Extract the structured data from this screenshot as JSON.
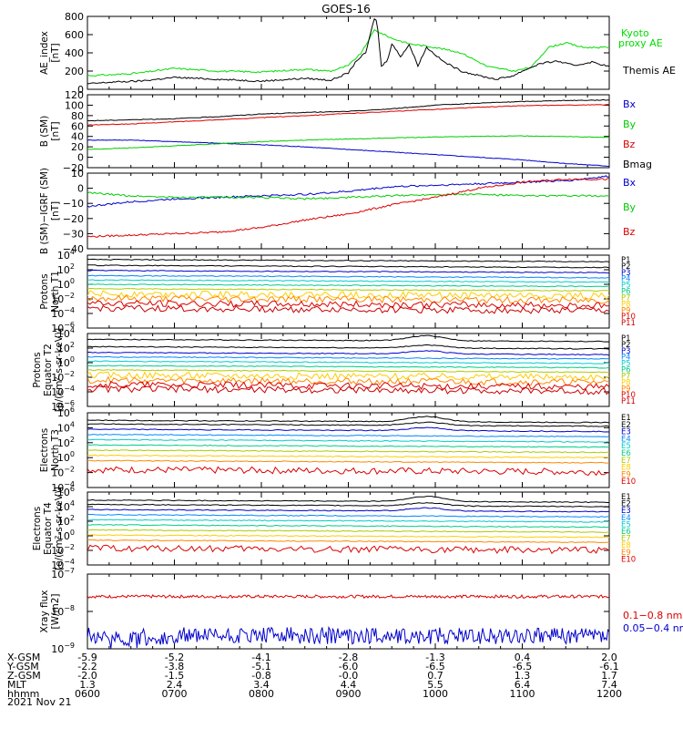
{
  "title": "GOES-16",
  "date_label": "2021 Nov 21",
  "footer": {
    "row_labels": [
      "X-GSM",
      "Y-GSM",
      "Z-GSM",
      "MLT",
      "hhmm"
    ],
    "columns": [
      {
        "x": "-5.9",
        "y": "-2.2",
        "z": "-2.0",
        "mlt": "1.3",
        "hhmm": "0600"
      },
      {
        "x": "-5.2",
        "y": "-3.8",
        "z": "-1.5",
        "mlt": "2.4",
        "hhmm": "0700"
      },
      {
        "x": "-4.1",
        "y": "-5.1",
        "z": "-0.8",
        "mlt": "3.4",
        "hhmm": "0800"
      },
      {
        "x": "-2.8",
        "y": "-6.0",
        "z": "-0.0",
        "mlt": "4.4",
        "hhmm": "0900"
      },
      {
        "x": "-1.3",
        "y": "-6.5",
        "z": "0.7",
        "mlt": "5.5",
        "hhmm": "1000"
      },
      {
        "x": "0.4",
        "y": "-6.5",
        "z": "1.3",
        "mlt": "6.4",
        "hhmm": "1100"
      },
      {
        "x": "2.0",
        "y": "-6.1",
        "z": "1.7",
        "mlt": "7.4",
        "hhmm": "1200"
      }
    ]
  },
  "chart_data": [
    {
      "type": "line",
      "ylabel": [
        "AE_index",
        "[nT]"
      ],
      "x_range_hours": [
        6,
        12
      ],
      "ylim": [
        0,
        800
      ],
      "yticks": [
        0,
        200,
        400,
        600,
        800
      ],
      "ytick_labels": [
        "0",
        "200",
        "400",
        "600",
        "800"
      ],
      "series": [
        {
          "name": "Kyoto proxy AE",
          "color": "#00dd00",
          "x": [
            6.0,
            6.3,
            6.6,
            7.0,
            7.5,
            8.0,
            8.5,
            8.8,
            9.0,
            9.15,
            9.3,
            9.5,
            9.7,
            10.0,
            10.3,
            10.6,
            10.9,
            11.1,
            11.3,
            11.5,
            11.7,
            12.0
          ],
          "values": [
            150,
            160,
            180,
            230,
            200,
            190,
            220,
            200,
            260,
            400,
            650,
            560,
            500,
            460,
            400,
            250,
            200,
            240,
            460,
            510,
            460,
            460
          ]
        },
        {
          "name": "Themis AE",
          "color": "#000000",
          "x": [
            6.0,
            6.3,
            6.6,
            7.0,
            7.5,
            8.0,
            8.5,
            8.8,
            9.0,
            9.1,
            9.2,
            9.3,
            9.33,
            9.38,
            9.45,
            9.5,
            9.6,
            9.7,
            9.8,
            9.9,
            10.0,
            10.1,
            10.3,
            10.5,
            10.7,
            10.9,
            11.0,
            11.2,
            11.4,
            11.6,
            11.8,
            12.0
          ],
          "values": [
            60,
            80,
            90,
            130,
            110,
            90,
            120,
            100,
            180,
            320,
            400,
            780,
            740,
            250,
            320,
            500,
            360,
            490,
            260,
            460,
            380,
            300,
            200,
            150,
            110,
            150,
            200,
            280,
            310,
            260,
            300,
            250
          ]
        }
      ]
    },
    {
      "type": "line",
      "ylabel": [
        "B (SM)",
        "[nT]"
      ],
      "x_range_hours": [
        6,
        12
      ],
      "ylim": [
        -20,
        120
      ],
      "yticks": [
        -20,
        0,
        20,
        40,
        60,
        80,
        100,
        120
      ],
      "ytick_labels": [
        "−20",
        "0",
        "20",
        "40",
        "60",
        "80",
        "100",
        "120"
      ],
      "series": [
        {
          "name": "Bx",
          "color": "#0000cc",
          "x": [
            6,
            6.5,
            7,
            7.5,
            8,
            8.5,
            9,
            9.5,
            10,
            10.5,
            11,
            11.5,
            12
          ],
          "values": [
            33,
            33,
            30,
            27,
            24,
            20,
            15,
            10,
            5,
            0,
            -5,
            -12,
            -17
          ]
        },
        {
          "name": "By",
          "color": "#00cc00",
          "x": [
            6,
            6.5,
            7,
            7.5,
            8,
            8.5,
            9,
            9.5,
            10,
            10.5,
            11,
            11.5,
            12
          ],
          "values": [
            15,
            18,
            22,
            26,
            30,
            33,
            35,
            37,
            39,
            40,
            41,
            40,
            38
          ]
        },
        {
          "name": "Bz",
          "color": "#dd0000",
          "x": [
            6,
            6.5,
            7,
            7.5,
            8,
            8.5,
            9,
            9.5,
            10,
            10.5,
            11,
            11.5,
            12
          ],
          "values": [
            62,
            64,
            68,
            72,
            76,
            80,
            84,
            88,
            92,
            96,
            99,
            100,
            101
          ]
        },
        {
          "name": "Bmag",
          "color": "#000000",
          "x": [
            6,
            6.5,
            7,
            7.5,
            8,
            8.5,
            9,
            9.5,
            10,
            10.5,
            11,
            11.5,
            12
          ],
          "values": [
            70,
            72,
            74,
            78,
            83,
            86,
            88,
            93,
            100,
            104,
            107,
            109,
            110
          ]
        }
      ]
    },
    {
      "type": "line",
      "ylabel": [
        "B (SM)−IGRF (SM)",
        "[nT]"
      ],
      "x_range_hours": [
        6,
        12
      ],
      "ylim": [
        -40,
        10
      ],
      "yticks": [
        -40,
        -30,
        -20,
        -10,
        0,
        10
      ],
      "ytick_labels": [
        "−40",
        "−30",
        "−20",
        "−10",
        "0",
        "10"
      ],
      "series": [
        {
          "name": "Bx",
          "color": "#0000cc",
          "x": [
            6,
            6.5,
            7,
            7.5,
            8,
            8.5,
            9,
            9.5,
            10,
            10.5,
            11,
            11.5,
            12
          ],
          "values": [
            -12,
            -9,
            -7,
            -6,
            -5,
            -4,
            -2,
            1,
            2,
            3,
            4,
            5,
            8
          ]
        },
        {
          "name": "By",
          "color": "#00cc00",
          "x": [
            6,
            6.5,
            7,
            7.5,
            8,
            8.5,
            9,
            9.5,
            10,
            10.5,
            11,
            11.5,
            12
          ],
          "values": [
            -3,
            -5,
            -6,
            -6,
            -6,
            -7,
            -6,
            -5,
            -4,
            -4,
            -5,
            -5,
            -5
          ]
        },
        {
          "name": "Bz",
          "color": "#dd0000",
          "x": [
            6,
            6.5,
            7,
            7.5,
            8,
            8.5,
            9,
            9.5,
            10,
            10.5,
            11,
            11.5,
            12
          ],
          "values": [
            -32,
            -31,
            -30,
            -29,
            -26,
            -21,
            -17,
            -11,
            -6,
            0,
            4,
            6,
            6
          ]
        }
      ]
    },
    {
      "type": "line",
      "log": true,
      "ylabel": [
        "Protons",
        "North T1"
      ],
      "x_range_hours": [
        6,
        12
      ],
      "ylim_exp": [
        -6,
        4
      ],
      "ytick_exps": [
        -6,
        -4,
        -2,
        0,
        2,
        4
      ],
      "ytick_labels": [
        "10",
        "10",
        "10",
        "10",
        "10",
        "10"
      ],
      "ytick_sup": [
        "−6",
        "−4",
        "−2",
        "0",
        "2",
        "4"
      ],
      "legend": [
        "P1",
        "P2",
        "P3",
        "P4",
        "P5",
        "P6",
        "P7",
        "P8",
        "P9",
        "P10",
        "P11"
      ],
      "channel_colors": [
        "#000000",
        "#000000",
        "#0000cc",
        "#0088ff",
        "#00cccc",
        "#00cc88",
        "#aacc00",
        "#ffcc00",
        "#ff8800",
        "#dd0000",
        "#cc0000"
      ],
      "channel_levels_exp": [
        3.4,
        2.6,
        1.9,
        1.2,
        0.6,
        0.0,
        -0.6,
        -1.3,
        -1.9,
        -2.6,
        -3.3
      ]
    },
    {
      "type": "line",
      "log": true,
      "ylabel": [
        "Protons",
        "Equator T2",
        "[p/(cm²-s-sr-keV)]"
      ],
      "x_range_hours": [
        6,
        12
      ],
      "ylim_exp": [
        -6,
        4
      ],
      "ytick_exps": [
        -6,
        -4,
        -2,
        0,
        2,
        4
      ],
      "ytick_labels": [
        "10",
        "10",
        "10",
        "10",
        "10",
        "10"
      ],
      "ytick_sup": [
        "−6",
        "−4",
        "−2",
        "0",
        "2",
        "4"
      ],
      "legend": [
        "P1",
        "P2",
        "P3",
        "P4",
        "P5",
        "P6",
        "P7",
        "P8",
        "P9",
        "P10",
        "P11"
      ],
      "channel_colors": [
        "#000000",
        "#000000",
        "#0000cc",
        "#0088ff",
        "#00cccc",
        "#00cc88",
        "#aacc00",
        "#ffcc00",
        "#ff8800",
        "#dd0000",
        "#cc0000"
      ],
      "channel_levels_exp": [
        3.2,
        2.2,
        1.4,
        0.8,
        0.2,
        -0.4,
        -1.0,
        -1.7,
        -2.4,
        -3.0,
        -3.6
      ]
    },
    {
      "type": "line",
      "log": true,
      "ylabel": [
        "Electrons",
        "North T3"
      ],
      "x_range_hours": [
        6,
        12
      ],
      "ylim_exp": [
        -4,
        6
      ],
      "ytick_exps": [
        -4,
        -2,
        0,
        2,
        4,
        6
      ],
      "ytick_labels": [
        "10",
        "10",
        "10",
        "10",
        "10",
        "10"
      ],
      "ytick_sup": [
        "−4",
        "−2",
        "0",
        "2",
        "4",
        "6"
      ],
      "legend": [
        "E1",
        "E2",
        "E3",
        "E4",
        "E5",
        "E6",
        "E7",
        "E8",
        "E9",
        "E10"
      ],
      "channel_colors": [
        "#000000",
        "#000000",
        "#0000cc",
        "#0088ff",
        "#00cccc",
        "#00cc88",
        "#aacc00",
        "#ffcc00",
        "#ff8800",
        "#dd0000"
      ],
      "channel_levels_exp": [
        5.0,
        4.5,
        3.8,
        3.1,
        2.4,
        1.7,
        1.0,
        0.3,
        -0.4,
        -1.6
      ]
    },
    {
      "type": "line",
      "log": true,
      "ylabel": [
        "Electrons",
        "Equator T4",
        "[e/(cm²-s-sr-keV)]"
      ],
      "x_range_hours": [
        6,
        12
      ],
      "ylim_exp": [
        -4,
        6
      ],
      "ytick_exps": [
        -4,
        -2,
        0,
        2,
        4,
        6
      ],
      "ytick_labels": [
        "10",
        "10",
        "10",
        "10",
        "10",
        "10"
      ],
      "ytick_sup": [
        "−4",
        "−2",
        "0",
        "2",
        "4",
        "6"
      ],
      "legend": [
        "E1",
        "E2",
        "E3",
        "E4",
        "E5",
        "E6",
        "E7",
        "E8",
        "E9",
        "E10"
      ],
      "channel_colors": [
        "#000000",
        "#000000",
        "#0000cc",
        "#0088ff",
        "#00cccc",
        "#00cc88",
        "#aacc00",
        "#ffcc00",
        "#ff8800",
        "#dd0000"
      ],
      "channel_levels_exp": [
        4.9,
        4.3,
        3.6,
        2.9,
        2.2,
        1.5,
        0.8,
        0.1,
        -0.6,
        -1.7
      ]
    },
    {
      "type": "line",
      "log": true,
      "ylabel": [
        "Xray flux",
        "[W/m2]"
      ],
      "x_range_hours": [
        6,
        12
      ],
      "ylim_exp": [
        -9,
        -7
      ],
      "ytick_exps": [
        -9,
        -8,
        -7
      ],
      "ytick_labels": [
        "10",
        "10",
        "10"
      ],
      "ytick_sup": [
        "−9",
        "−8",
        "−7"
      ],
      "series": [
        {
          "name": "0.1−0.8 nm",
          "color": "#dd0000",
          "level_exp": -7.6
        },
        {
          "name": "0.05−0.4 nm",
          "color": "#0000cc",
          "level_exp": -8.65
        }
      ]
    }
  ]
}
